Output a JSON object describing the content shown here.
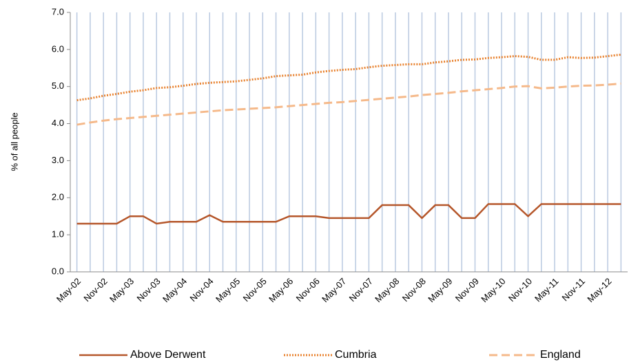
{
  "chart_data": {
    "type": "line",
    "y_label": "% of all people",
    "categories": [
      "May-02",
      null,
      "Nov-02",
      null,
      "May-03",
      null,
      "Nov-03",
      null,
      "May-04",
      null,
      "Nov-04",
      null,
      "May-05",
      null,
      "Nov-05",
      null,
      "May-06",
      null,
      "Nov-06",
      null,
      "May-07",
      null,
      "Nov-07",
      null,
      "May-08",
      null,
      "Nov-08",
      null,
      "May-09",
      null,
      "Nov-09",
      null,
      "May-10",
      null,
      "Nov-10",
      null,
      "May-11",
      null,
      "Nov-11",
      null,
      "May-12",
      null
    ],
    "series": [
      {
        "name": "Above Derwent",
        "color": "#b5562a",
        "style": "solid",
        "values": [
          1.3,
          1.3,
          1.3,
          1.3,
          1.5,
          1.5,
          1.3,
          1.35,
          1.35,
          1.35,
          1.53,
          1.35,
          1.35,
          1.35,
          1.35,
          1.35,
          1.5,
          1.5,
          1.5,
          1.45,
          1.45,
          1.45,
          1.45,
          1.8,
          1.8,
          1.8,
          1.45,
          1.8,
          1.8,
          1.45,
          1.45,
          1.83,
          1.83,
          1.83,
          1.5,
          1.83,
          1.83,
          1.83,
          1.83,
          1.83,
          1.83,
          1.83
        ]
      },
      {
        "name": "Cumbria",
        "color": "#e8822f",
        "style": "dotted",
        "values": [
          4.63,
          4.68,
          4.75,
          4.8,
          4.86,
          4.9,
          4.96,
          4.98,
          5.02,
          5.07,
          5.1,
          5.12,
          5.14,
          5.18,
          5.22,
          5.28,
          5.3,
          5.32,
          5.38,
          5.42,
          5.45,
          5.47,
          5.52,
          5.56,
          5.58,
          5.6,
          5.6,
          5.65,
          5.68,
          5.72,
          5.73,
          5.77,
          5.79,
          5.82,
          5.8,
          5.72,
          5.72,
          5.79,
          5.77,
          5.78,
          5.82,
          5.86
        ]
      },
      {
        "name": "England",
        "color": "#f5b98a",
        "style": "dashed",
        "values": [
          3.97,
          4.03,
          4.08,
          4.12,
          4.15,
          4.18,
          4.21,
          4.24,
          4.27,
          4.3,
          4.33,
          4.36,
          4.38,
          4.4,
          4.42,
          4.44,
          4.47,
          4.5,
          4.53,
          4.56,
          4.58,
          4.61,
          4.64,
          4.67,
          4.7,
          4.73,
          4.77,
          4.8,
          4.83,
          4.87,
          4.9,
          4.93,
          4.96,
          5.0,
          5.01,
          4.95,
          4.97,
          5.0,
          5.02,
          5.03,
          5.05,
          5.08
        ]
      }
    ],
    "ylim": [
      0,
      7
    ],
    "yticks": [
      {
        "value": 0,
        "label": "0.0"
      },
      {
        "value": 1,
        "label": "1.0"
      },
      {
        "value": 2,
        "label": "2.0"
      },
      {
        "value": 3,
        "label": "3.0"
      },
      {
        "value": 4,
        "label": "4.0"
      },
      {
        "value": 5,
        "label": "5.0"
      },
      {
        "value": 6,
        "label": "6.0"
      },
      {
        "value": 7,
        "label": "7.0"
      }
    ],
    "x_grid": true,
    "x_grid_color": "#b9c9e0",
    "legend": "bottom"
  }
}
